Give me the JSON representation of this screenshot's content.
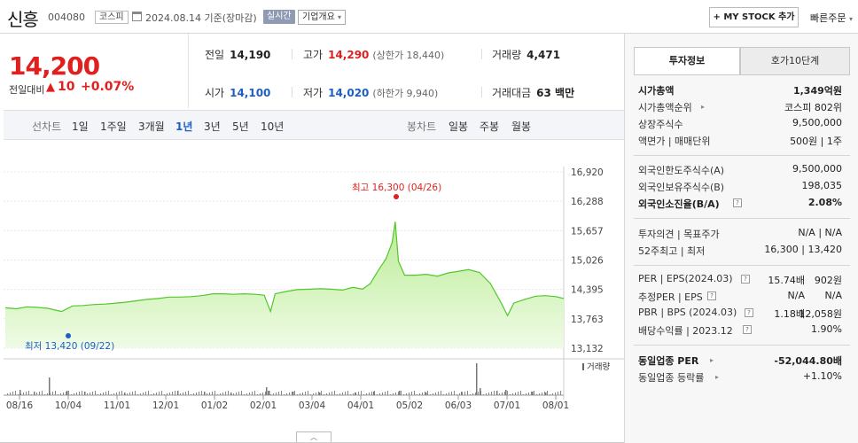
{
  "header": {
    "name": "신흥",
    "code": "004080",
    "market": "코스피",
    "date_text": "2024.08.14  기준(장마감)",
    "realtime": "실시간",
    "corp_info": "기업개요",
    "mystock": "MY STOCK 추가",
    "quick_order": "빠른주문"
  },
  "price": {
    "current": "14,200",
    "change_label": "전일대비",
    "change_arrow": "▲",
    "change_amount": "10",
    "change_pct": "+0.07%"
  },
  "quote": {
    "prev_label": "전일",
    "prev": "14,190",
    "high_label": "고가",
    "high": "14,290",
    "upper_limit": "(상한가 18,440)",
    "volume_label": "거래량",
    "volume": "4,471",
    "open_label": "시가",
    "open": "14,100",
    "low_label": "저가",
    "low": "14,020",
    "lower_limit": "(하한가 9,940)",
    "amount_label": "거래대금",
    "amount": "63 백만"
  },
  "periods": {
    "line_label": "선차트",
    "items": [
      "1일",
      "1주일",
      "3개월",
      "1년",
      "3년",
      "5년",
      "10년"
    ],
    "active": "1년",
    "candle_label": "봉차트",
    "candle_items": [
      "일봉",
      "주봉",
      "월봉"
    ]
  },
  "chart_data": {
    "type": "area",
    "x_ticks": [
      "08/16",
      "10/04",
      "11/01",
      "12/01",
      "01/02",
      "02/01",
      "03/04",
      "04/01",
      "05/02",
      "06/03",
      "07/01",
      "08/01"
    ],
    "y_ticks": [
      "16,920",
      "16,288",
      "15,657",
      "15,026",
      "14,395",
      "13,763",
      "13,132"
    ],
    "ylim": [
      13132,
      16920
    ],
    "high_annotation": "최고 16,300 (04/26)",
    "low_annotation": "최저 13,420 (09/22)",
    "volume_label": "거래량",
    "price_series": [
      [
        "08/16",
        14000
      ],
      [
        "08/23",
        13980
      ],
      [
        "08/30",
        14020
      ],
      [
        "09/06",
        14010
      ],
      [
        "09/13",
        13990
      ],
      [
        "09/22",
        13920
      ],
      [
        "09/29",
        14040
      ],
      [
        "10/06",
        14050
      ],
      [
        "10/13",
        14070
      ],
      [
        "10/20",
        14080
      ],
      [
        "10/27",
        14100
      ],
      [
        "11/03",
        14120
      ],
      [
        "11/10",
        14150
      ],
      [
        "11/17",
        14180
      ],
      [
        "11/24",
        14200
      ],
      [
        "12/01",
        14230
      ],
      [
        "12/08",
        14230
      ],
      [
        "12/15",
        14240
      ],
      [
        "12/22",
        14260
      ],
      [
        "12/29",
        14300
      ],
      [
        "01/05",
        14300
      ],
      [
        "01/12",
        14290
      ],
      [
        "01/19",
        14300
      ],
      [
        "01/26",
        14290
      ],
      [
        "02/02",
        14270
      ],
      [
        "02/06",
        13920
      ],
      [
        "02/09",
        14300
      ],
      [
        "02/16",
        14350
      ],
      [
        "02/23",
        14390
      ],
      [
        "03/01",
        14400
      ],
      [
        "03/08",
        14410
      ],
      [
        "03/15",
        14400
      ],
      [
        "03/22",
        14380
      ],
      [
        "03/29",
        14440
      ],
      [
        "04/05",
        14400
      ],
      [
        "04/10",
        14520
      ],
      [
        "04/15",
        14800
      ],
      [
        "04/20",
        15050
      ],
      [
        "04/24",
        15400
      ],
      [
        "04/26",
        15850
      ],
      [
        "04/28",
        15000
      ],
      [
        "05/02",
        14700
      ],
      [
        "05/09",
        14700
      ],
      [
        "05/16",
        14720
      ],
      [
        "05/23",
        14680
      ],
      [
        "05/30",
        14750
      ],
      [
        "06/06",
        14780
      ],
      [
        "06/13",
        14820
      ],
      [
        "06/20",
        14760
      ],
      [
        "06/27",
        14520
      ],
      [
        "07/01",
        14280
      ],
      [
        "07/04",
        14100
      ],
      [
        "07/08",
        13830
      ],
      [
        "07/12",
        14100
      ],
      [
        "07/19",
        14180
      ],
      [
        "07/26",
        14250
      ],
      [
        "08/02",
        14260
      ],
      [
        "08/09",
        14240
      ],
      [
        "08/14",
        14200
      ]
    ]
  },
  "invest": {
    "tab_active": "투자정보",
    "tab_inactive": "호가10단계",
    "rows": {
      "mcap_label": "시가총액",
      "mcap": "1,349억원",
      "mcap_rank_label": "시가총액순위",
      "mcap_rank": "코스피 802위",
      "shares_label": "상장주식수",
      "shares": "9,500,000",
      "face_label": "액면가 | 매매단위",
      "face": "500원 | 1주",
      "foreign_limit_label": "외국인한도주식수(A)",
      "foreign_limit": "9,500,000",
      "foreign_hold_label": "외국인보유주식수(B)",
      "foreign_hold": "198,035",
      "foreign_rate_label": "외국인소진율(B/A)",
      "foreign_rate": "2.08%",
      "opinion_label": "투자의견 | 목표주가",
      "opinion": "N/A | N/A",
      "w52_label": "52주최고 | 최저",
      "w52": "16,300 | 13,420",
      "per_label": "PER | EPS(2024.03)",
      "per": "15.74배",
      "eps": "902원",
      "eper_label": "추정PER | EPS",
      "eper": "N/A",
      "eeps": "N/A",
      "pbr_label": "PBR | BPS (2024.03)",
      "pbr": "1.18배",
      "bps": "12,058원",
      "div_label": "배당수익률 | 2023.12",
      "div": "1.90%",
      "ind_per_label": "동일업종 PER",
      "ind_per": "-52,044.80배",
      "ind_chg_label": "동일업종 등락률",
      "ind_chg": "+1.10%"
    }
  }
}
